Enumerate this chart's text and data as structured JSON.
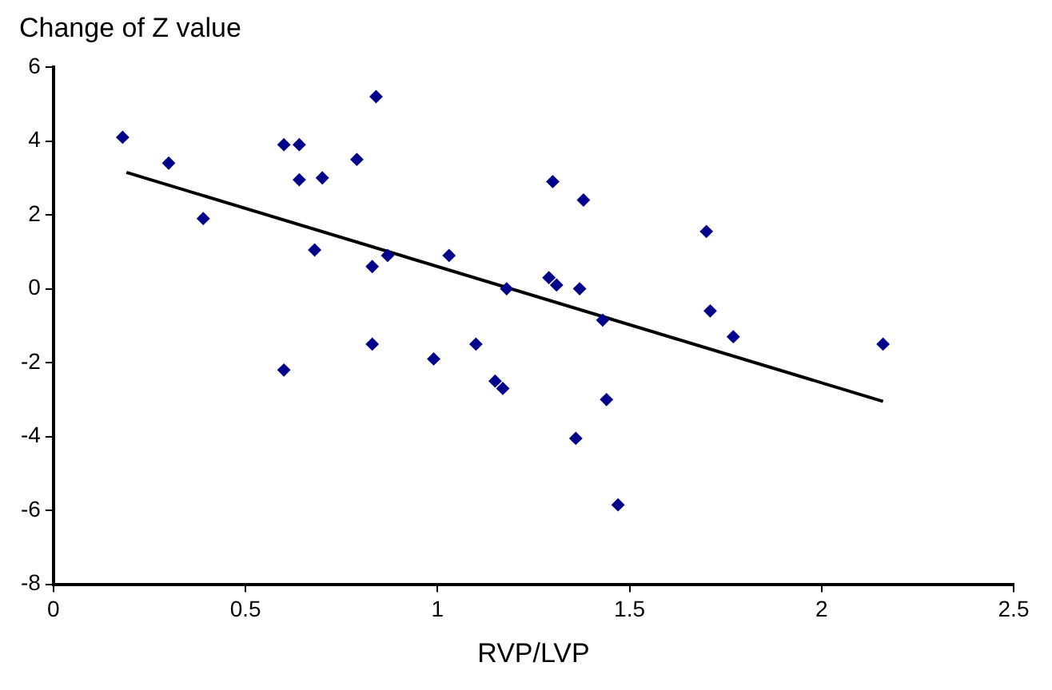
{
  "chart_data": {
    "type": "scatter",
    "ylabel": "Change of Z value",
    "xlabel": "RVP/LVP",
    "xlim": [
      0,
      2.5
    ],
    "xticks": [
      0,
      0.5,
      1,
      1.5,
      2,
      2.5
    ],
    "ylim": [
      -8,
      6
    ],
    "yticks": [
      -8,
      -6,
      -4,
      -2,
      0,
      2,
      4,
      6
    ],
    "grid": false,
    "legend": false,
    "marker": "diamond",
    "series": [
      {
        "color": "#00008b",
        "x": [
          0.18,
          0.3,
          0.39,
          0.6,
          0.64,
          0.64,
          0.7,
          0.79,
          0.84,
          0.68,
          0.83,
          0.87,
          1.03,
          1.18,
          0.83,
          0.6,
          0.99,
          1.1,
          1.15,
          1.17,
          1.3,
          1.38,
          1.29,
          1.31,
          1.37,
          1.43,
          1.7,
          1.71,
          1.77,
          2.16,
          1.44,
          1.36,
          1.47
        ],
        "values": [
          4.1,
          3.4,
          1.9,
          3.9,
          3.9,
          2.95,
          3.0,
          3.5,
          5.2,
          1.05,
          0.6,
          0.9,
          0.9,
          0.0,
          -1.5,
          -2.2,
          -1.9,
          -1.5,
          -2.5,
          -2.7,
          2.9,
          2.4,
          0.3,
          0.1,
          0.0,
          -0.85,
          1.55,
          -0.6,
          -1.3,
          -1.5,
          -3.0,
          -4.05,
          -5.85
        ]
      },
      {
        "type": "line",
        "color": "#000000",
        "marker": "none",
        "x": [
          0.19,
          2.16
        ],
        "values": [
          3.15,
          -3.05
        ]
      }
    ]
  }
}
